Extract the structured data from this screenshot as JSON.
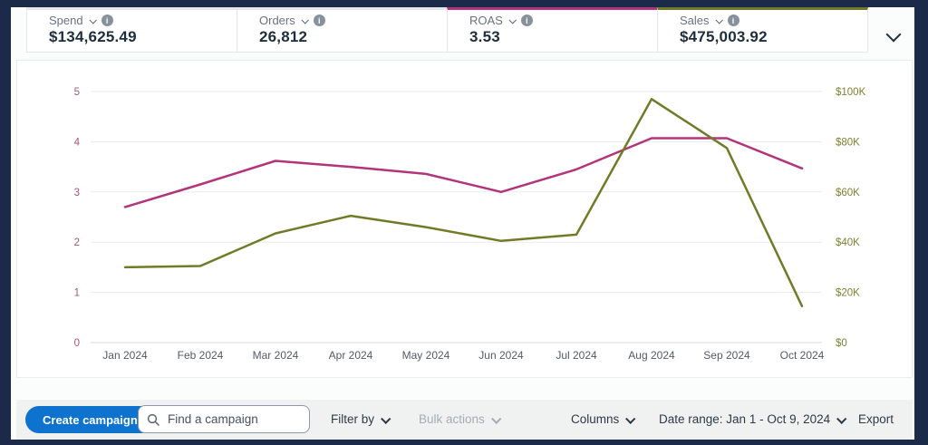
{
  "metric_cards": [
    {
      "label": "Spend",
      "value": "$134,625.49",
      "accent_color": "",
      "has_dropdown": true,
      "has_info": true
    },
    {
      "label": "Orders",
      "value": "26,812",
      "accent_color": "",
      "has_dropdown": true,
      "has_info": true
    },
    {
      "label": "ROAS",
      "value": "3.53",
      "accent_color": "#b2357c",
      "has_dropdown": true,
      "has_info": true
    },
    {
      "label": "Sales",
      "value": "$475,003.92",
      "accent_color": "#737a27",
      "has_dropdown": true,
      "has_info": true
    }
  ],
  "chart_data": {
    "type": "line",
    "categories": [
      "Jan 2024",
      "Feb 2024",
      "Mar 2024",
      "Apr 2024",
      "May 2024",
      "Jun 2024",
      "Jul 2024",
      "Aug 2024",
      "Sep 2024",
      "Oct 2024"
    ],
    "series": [
      {
        "name": "ROAS",
        "axis": "left",
        "color": "#b2357c",
        "values": [
          2.7,
          3.15,
          3.62,
          3.5,
          3.36,
          3.0,
          3.45,
          4.07,
          4.07,
          3.47
        ]
      },
      {
        "name": "Sales",
        "axis": "right",
        "color": "#737a27",
        "values": [
          30000,
          30500,
          43500,
          50500,
          46000,
          40500,
          43000,
          97000,
          77500,
          14500
        ]
      }
    ],
    "left_axis": {
      "title": "ROAS",
      "min": 0,
      "max": 5,
      "ticks": [
        "0",
        "1",
        "2",
        "3",
        "4",
        "5"
      ],
      "tick_color": "#a3586e"
    },
    "right_axis": {
      "title": "Sales",
      "min": 0,
      "max": 100000,
      "ticks": [
        "$0",
        "$20K",
        "$40K",
        "$60K",
        "$80K",
        "$100K"
      ],
      "tick_color": "#7c8230"
    },
    "grid": true,
    "legend_position": "none",
    "x_label_color": "#545b64"
  },
  "toolbar": {
    "create_campaign": "Create campaign",
    "search_placeholder": "Find a campaign",
    "filter_by": "Filter by",
    "bulk_actions": "Bulk actions",
    "columns": "Columns",
    "date_range": "Date range: Jan 1 - Oct 9, 2024",
    "export": "Export"
  },
  "colors": {
    "frame": "#1b2a49",
    "panel_bg": "#ffffff",
    "toolbar_bg": "#f0f1f1",
    "primary_button": "#0e72cf",
    "accent_roas": "#b2357c",
    "accent_sales": "#737a27",
    "gridline": "#e8eaea"
  }
}
